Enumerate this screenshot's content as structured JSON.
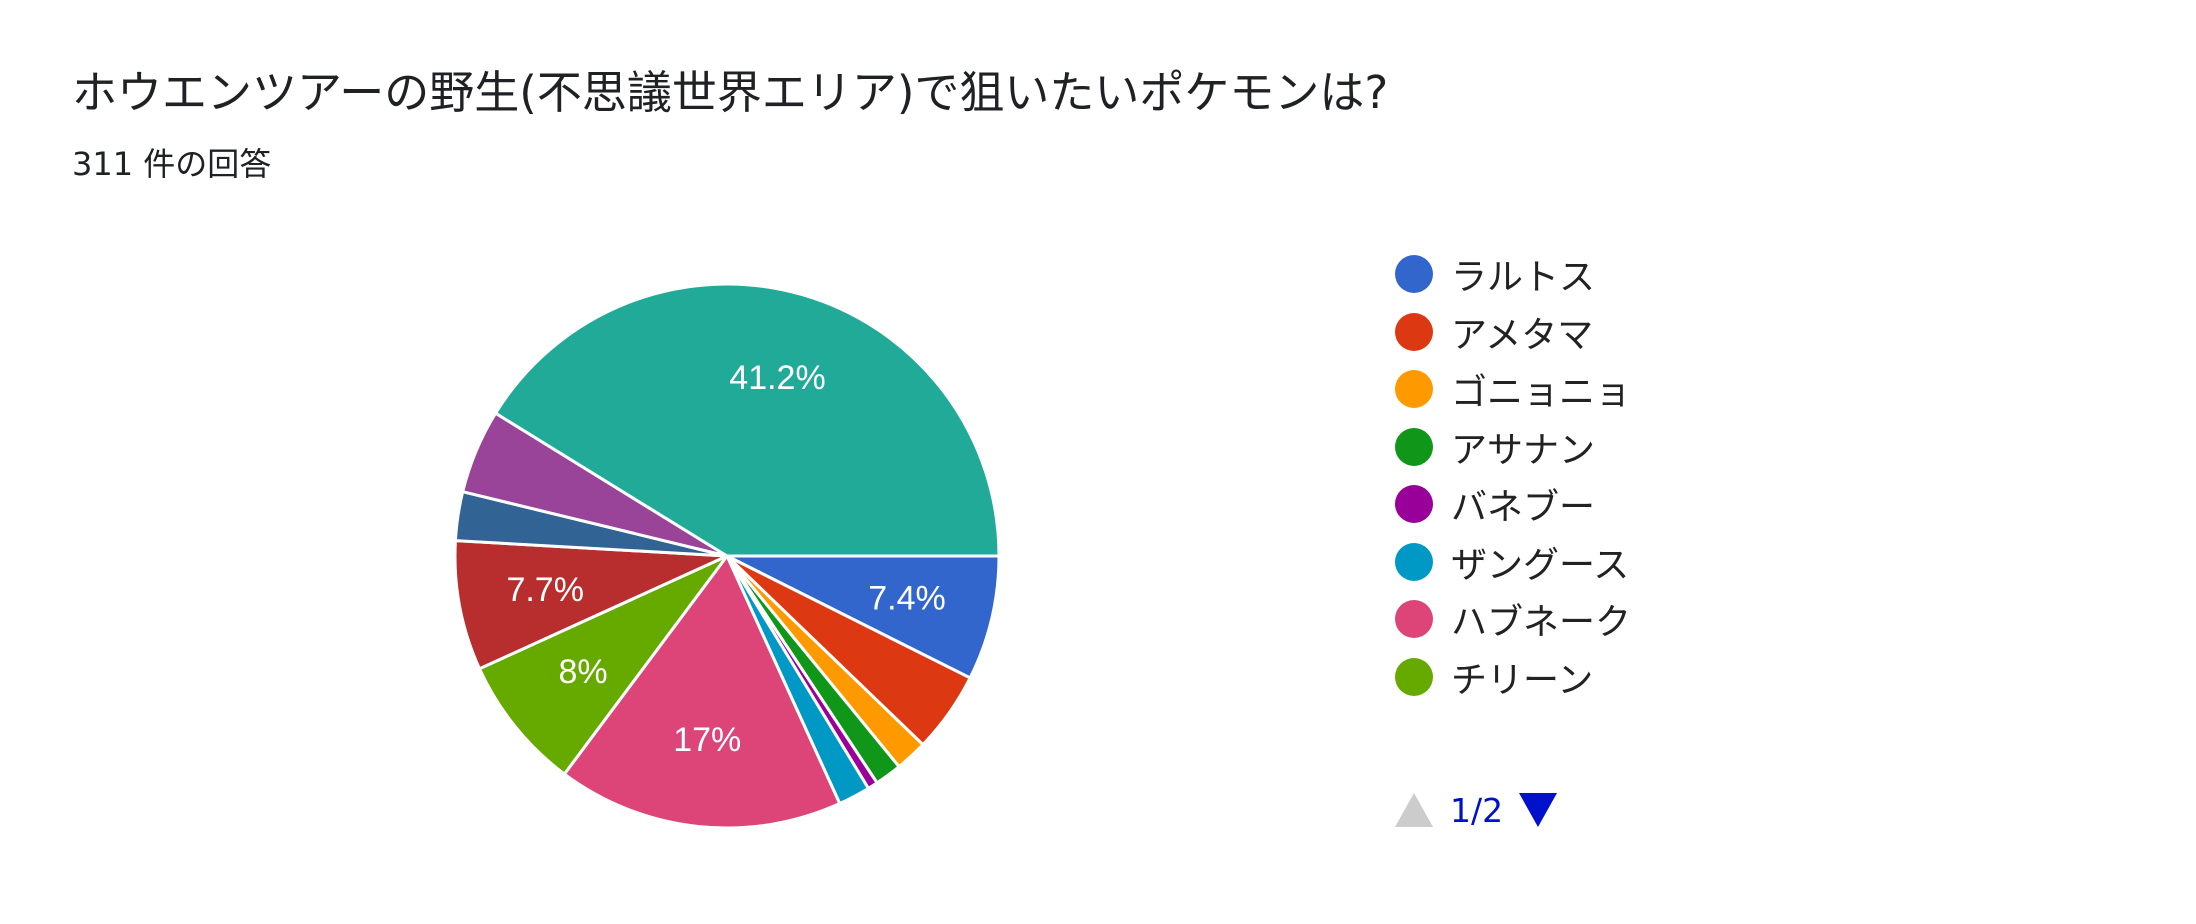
{
  "header": {
    "title": "ホウエンツアーの野生(不思議世界エリア)で狙いたいポケモンは?",
    "response_count": "311 件の回答"
  },
  "chart_data": {
    "type": "pie",
    "responses": 311,
    "slices": [
      {
        "name": "ラルトス",
        "value": 7.4,
        "color": "#3366cc",
        "label": "7.4%"
      },
      {
        "name": "アメタマ",
        "value": 4.8,
        "color": "#dc3912",
        "label": ""
      },
      {
        "name": "ゴニョニョ",
        "value": 1.9,
        "color": "#ff9900",
        "label": ""
      },
      {
        "name": "アサナン",
        "value": 1.6,
        "color": "#109618",
        "label": ""
      },
      {
        "name": "バネブー",
        "value": 0.6,
        "color": "#990099",
        "label": ""
      },
      {
        "name": "ザングース",
        "value": 1.9,
        "color": "#0099c6",
        "label": ""
      },
      {
        "name": "ハブネーク",
        "value": 17.0,
        "color": "#dd4477",
        "label": "17%"
      },
      {
        "name": "チリーン",
        "value": 8.0,
        "color": "#66aa00",
        "label": "8%"
      },
      {
        "name": "",
        "value": 7.7,
        "color": "#b82e2e",
        "label": "7.7%"
      },
      {
        "name": "",
        "value": 2.9,
        "color": "#316395",
        "label": ""
      },
      {
        "name": "",
        "value": 5.0,
        "color": "#994499",
        "label": ""
      },
      {
        "name": "",
        "value": 41.2,
        "color": "#22aa99",
        "label": "41.2%"
      }
    ],
    "legend_position": "right"
  },
  "legend": {
    "items": [
      "ラルトス",
      "アメタマ",
      "ゴニョニョ",
      "アサナン",
      "バネブー",
      "ザングース",
      "ハブネーク",
      "チリーン"
    ]
  },
  "pager": {
    "text": "1/2"
  }
}
